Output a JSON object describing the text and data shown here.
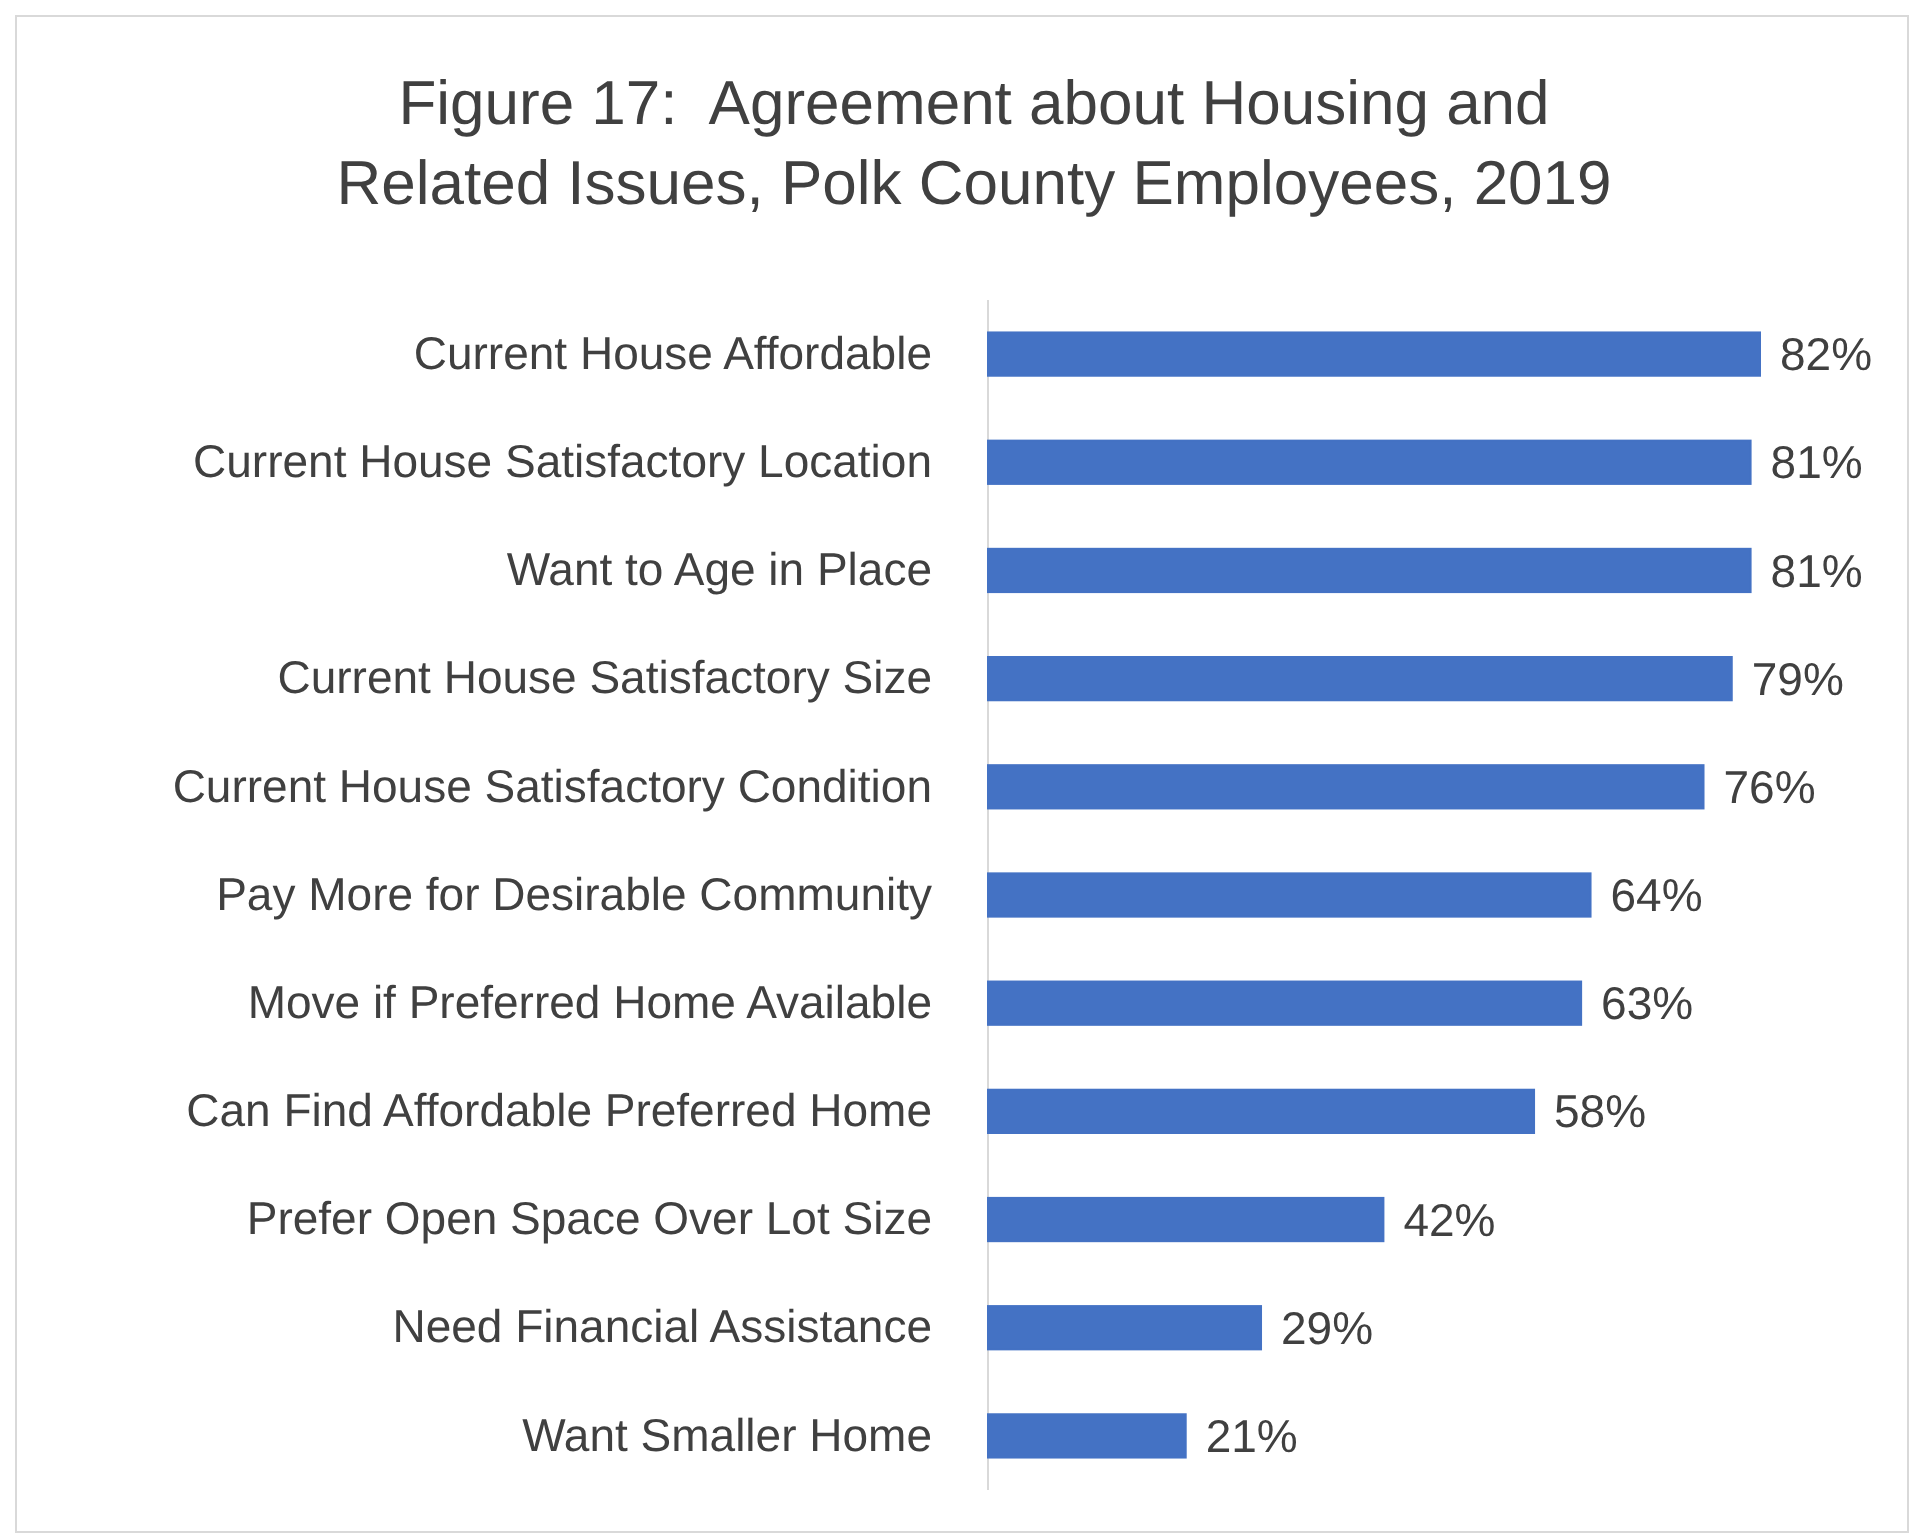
{
  "chart_data": {
    "type": "bar",
    "orientation": "horizontal",
    "title": "Figure 17:  Agreement about Housing and Related Issues, Polk County Employees, 2019",
    "categories": [
      "Current House Affordable",
      "Current House Satisfactory Location",
      "Want to Age in Place",
      "Current House Satisfactory Size",
      "Current House Satisfactory Condition",
      "Pay More for Desirable Community",
      "Move if Preferred Home Available",
      "Can Find Affordable Preferred Home",
      "Prefer Open Space Over Lot Size",
      "Need Financial Assistance",
      "Want Smaller Home"
    ],
    "values": [
      82,
      81,
      81,
      79,
      76,
      64,
      63,
      58,
      42,
      29,
      21
    ],
    "value_labels": [
      "82%",
      "81%",
      "81%",
      "79%",
      "76%",
      "64%",
      "63%",
      "58%",
      "42%",
      "29%",
      "21%"
    ],
    "color": "#4472c4"
  }
}
